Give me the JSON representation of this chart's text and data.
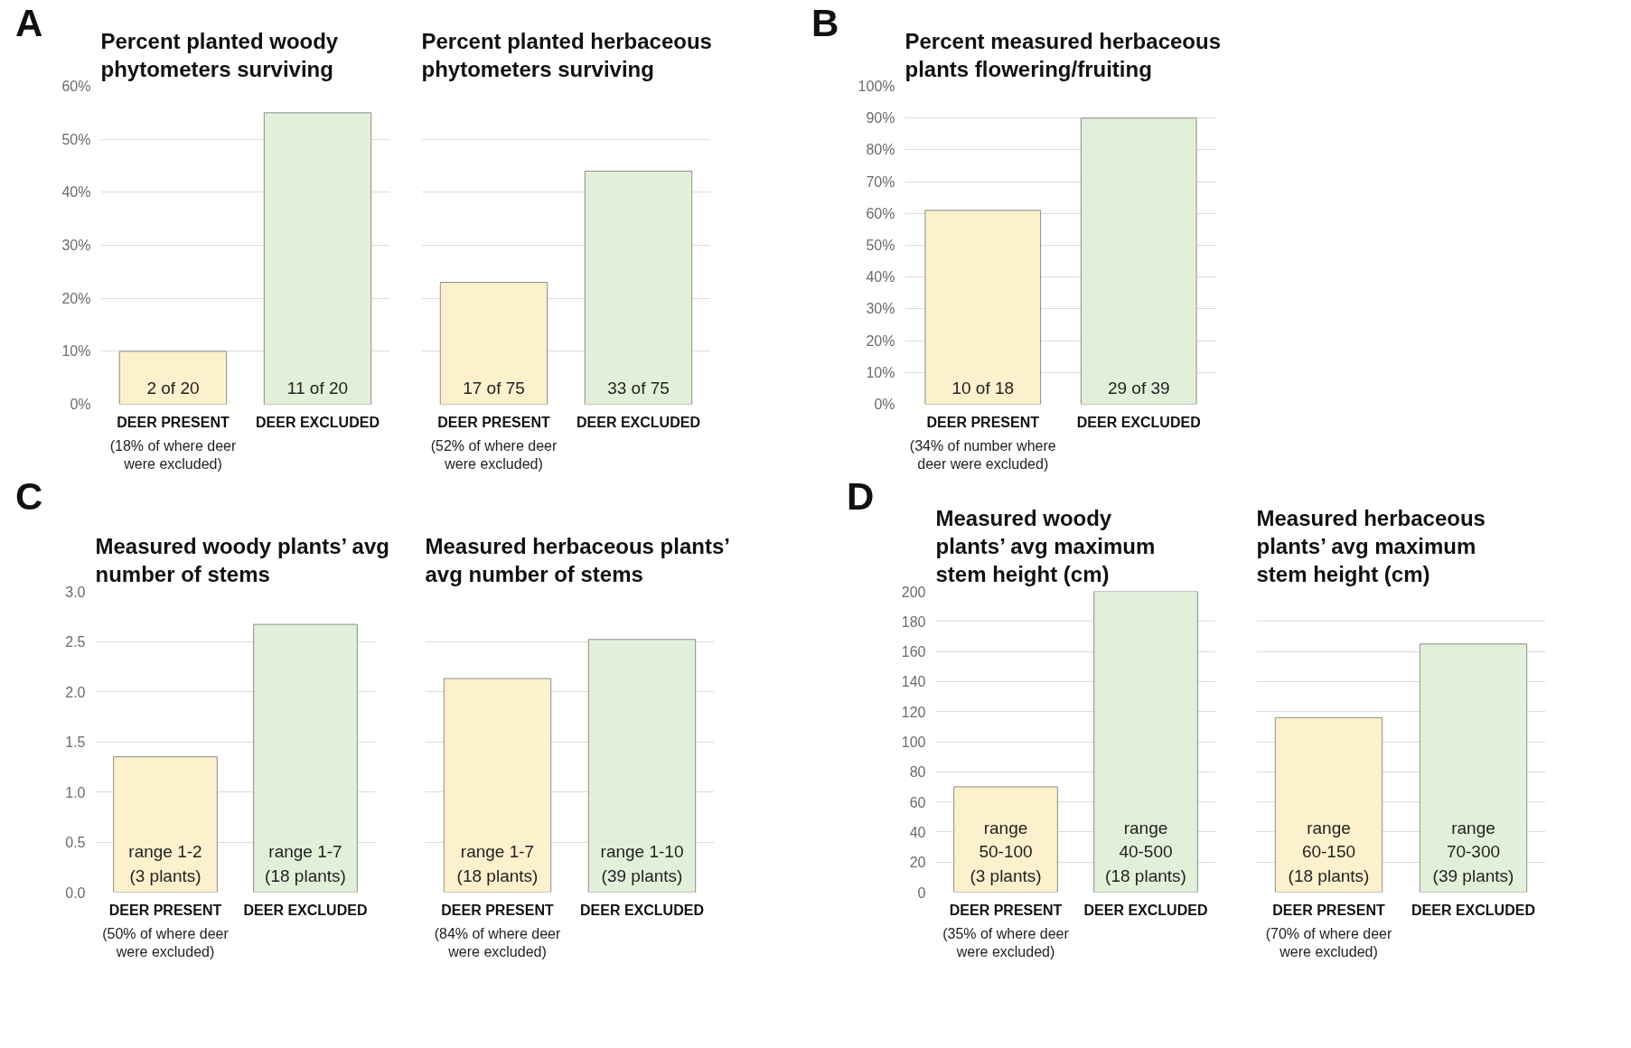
{
  "chart_data": [
    {
      "type": "bar",
      "title": "Percent planted woody phytometers surviving",
      "annotations": [
        "A",
        "(18% of where deer were excluded)",
        {
          "text": "2 of 20",
          "x": "DEER PRESENT",
          "y": 0
        },
        {
          "text": "11 of 20",
          "x": "DEER EXCLUDED",
          "y": 0
        }
      ],
      "categories": [
        "DEER PRESENT",
        "DEER EXCLUDED"
      ],
      "values": [
        10,
        55
      ],
      "colors": [
        "#fdf0cc",
        "#e2f0d9"
      ],
      "ylim": [
        0,
        60
      ],
      "yticks": [
        {
          "value": 0,
          "label": "0%"
        },
        {
          "value": 10,
          "label": "10%"
        },
        {
          "value": 20,
          "label": "20%"
        },
        {
          "value": 30,
          "label": "30%"
        },
        {
          "value": 40,
          "label": "40%"
        },
        {
          "value": 50,
          "label": "50%"
        },
        {
          "value": 60,
          "label": "60%"
        }
      ],
      "grid": "y"
    },
    {
      "type": "bar",
      "title": "Percent planted herbaceous phytometers surviving",
      "annotations": [
        "(52% of where deer were excluded)",
        {
          "text": "17 of 75",
          "x": "DEER PRESENT",
          "y": 0
        },
        {
          "text": "33 of 75",
          "x": "DEER EXCLUDED",
          "y": 0
        }
      ],
      "categories": [
        "DEER PRESENT",
        "DEER EXCLUDED"
      ],
      "values": [
        23,
        44
      ],
      "colors": [
        "#fdf0cc",
        "#e2f0d9"
      ],
      "ylim": [
        0,
        60
      ],
      "yticks": [
        0,
        10,
        20,
        30,
        40,
        50,
        60
      ],
      "tick_labels": "x",
      "grid": "y"
    },
    {
      "type": "bar",
      "title": "Percent measured herbaceous plants flowering/fruiting",
      "annotations": [
        "B",
        "(34% of number where deer were excluded)",
        {
          "text": "10 of 18",
          "x": "DEER PRESENT",
          "y": 0
        },
        {
          "text": "29 of 39",
          "x": "DEER EXCLUDED",
          "y": 0
        }
      ],
      "categories": [
        "DEER PRESENT",
        "DEER EXCLUDED"
      ],
      "values": [
        61,
        90
      ],
      "colors": [
        "#fdf0cc",
        "#e2f0d9"
      ],
      "ylim": [
        0,
        100
      ],
      "yticks": [
        {
          "value": 0,
          "label": "0%"
        },
        {
          "value": 10,
          "label": "10%"
        },
        {
          "value": 20,
          "label": "20%"
        },
        {
          "value": 30,
          "label": "30%"
        },
        {
          "value": 40,
          "label": "40%"
        },
        {
          "value": 50,
          "label": "50%"
        },
        {
          "value": 60,
          "label": "60%"
        },
        {
          "value": 70,
          "label": "70%"
        },
        {
          "value": 80,
          "label": "80%"
        },
        {
          "value": 90,
          "label": "90%"
        },
        {
          "value": 100,
          "label": "100%"
        }
      ],
      "grid": "y"
    },
    {
      "type": "bar",
      "title": "Measured woody plants’ avg number of stems",
      "annotations": [
        "C",
        "(50% of where deer were excluded)",
        {
          "text": "range 1-2 (3 plants)",
          "x": "DEER PRESENT",
          "y": 0
        },
        {
          "text": "range 1-7 (18 plants)",
          "x": "DEER EXCLUDED",
          "y": 0
        }
      ],
      "categories": [
        "DEER PRESENT",
        "DEER EXCLUDED"
      ],
      "values": [
        1.35,
        2.67
      ],
      "colors": [
        "#fdf0cc",
        "#e2f0d9"
      ],
      "ylim": [
        0,
        3
      ],
      "yticks": [
        {
          "value": 0,
          "label": "0.0"
        },
        0.5,
        {
          "value": 1,
          "label": "1.0"
        },
        1.5,
        {
          "value": 2,
          "label": "2.0"
        },
        2.5,
        {
          "value": 3,
          "label": "3.0"
        }
      ],
      "grid": "y"
    },
    {
      "type": "bar",
      "title": "Measured herbaceous plants’ avg number of stems",
      "annotations": [
        "(84% of where deer were excluded)",
        {
          "text": "range 1-7 (18 plants)",
          "x": "DEER PRESENT",
          "y": 0
        },
        {
          "text": "range 1-10 (39 plants)",
          "x": "DEER EXCLUDED",
          "y": 0
        }
      ],
      "categories": [
        "DEER PRESENT",
        "DEER EXCLUDED"
      ],
      "values": [
        2.13,
        2.52
      ],
      "colors": [
        "#fdf0cc",
        "#e2f0d9"
      ],
      "ylim": [
        0,
        3
      ],
      "yticks": [
        0,
        0.5,
        1,
        1.5,
        2,
        2.5,
        3
      ],
      "tick_labels": "x",
      "grid": "y"
    },
    {
      "type": "bar",
      "title": "Measured woody plants’ avg maximum stem height (cm)",
      "annotations": [
        "D",
        "(35% of where deer were excluded)",
        {
          "text": "range 50-100 (3 plants)",
          "x": "DEER PRESENT",
          "y": 0
        },
        {
          "text": "range 40-500 (18 plants)",
          "x": "DEER EXCLUDED",
          "y": 0
        }
      ],
      "categories": [
        "DEER PRESENT",
        "DEER EXCLUDED"
      ],
      "values": [
        70,
        200
      ],
      "colors": [
        "#fdf0cc",
        "#e2f0d9"
      ],
      "ylim": [
        0,
        200
      ],
      "yticks": [
        0,
        20,
        40,
        60,
        80,
        100,
        120,
        140,
        160,
        180,
        200
      ],
      "grid": "y"
    },
    {
      "type": "bar",
      "title": "Measured herbaceous plants’ avg maximum stem height (cm)",
      "annotations": [
        "(70% of where deer were excluded)",
        {
          "text": "range 60-150 (18 plants)",
          "x": "DEER PRESENT",
          "y": 0
        },
        {
          "text": "range 70-300 (39 plants)",
          "x": "DEER EXCLUDED",
          "y": 0
        }
      ],
      "categories": [
        "DEER PRESENT",
        "DEER EXCLUDED"
      ],
      "values": [
        116,
        165
      ],
      "colors": [
        "#fdf0cc",
        "#e2f0d9"
      ],
      "ylim": [
        0,
        200
      ],
      "yticks": [
        0,
        20,
        40,
        60,
        80,
        100,
        120,
        140,
        160,
        180,
        200
      ],
      "tick_labels": "x",
      "grid": "y"
    }
  ]
}
